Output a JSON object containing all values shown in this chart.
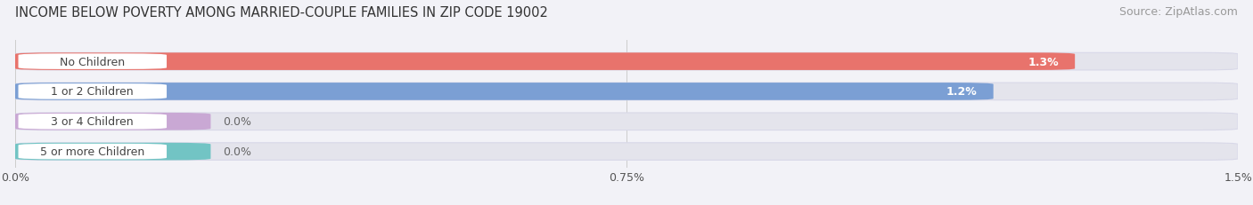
{
  "title": "INCOME BELOW POVERTY AMONG MARRIED-COUPLE FAMILIES IN ZIP CODE 19002",
  "source": "Source: ZipAtlas.com",
  "categories": [
    "No Children",
    "1 or 2 Children",
    "3 or 4 Children",
    "5 or more Children"
  ],
  "values": [
    1.3,
    1.2,
    0.0,
    0.0
  ],
  "bar_colors": [
    "#E8736C",
    "#7B9FD4",
    "#C9A8D4",
    "#72C4C4"
  ],
  "xlim": [
    0,
    1.5
  ],
  "xticks": [
    0.0,
    0.75,
    1.5
  ],
  "xtick_labels": [
    "0.0%",
    "0.75%",
    "1.5%"
  ],
  "background_color": "#f2f2f7",
  "bar_background_color": "#e4e4ec",
  "bar_bg_edge_color": "#d8d8e8",
  "title_fontsize": 10.5,
  "source_fontsize": 9,
  "bar_label_fontsize": 9,
  "category_fontsize": 9
}
